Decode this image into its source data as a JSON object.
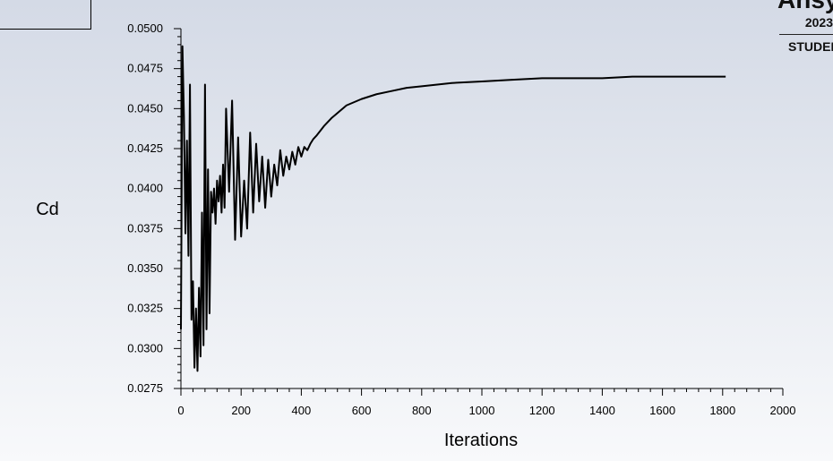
{
  "logo": {
    "word": "Ansys",
    "year": "2023",
    "edition": "STUDENT"
  },
  "chart_data": {
    "type": "line",
    "title": "",
    "xlabel": "Iterations",
    "ylabel": "Cd",
    "xlim": [
      0,
      2000
    ],
    "ylim": [
      0.0275,
      0.05
    ],
    "x_ticks": [
      0,
      200,
      400,
      600,
      800,
      1000,
      1200,
      1400,
      1600,
      1800,
      2000
    ],
    "x_tick_labels": [
      "0",
      "200",
      "400",
      "600",
      "800",
      "1000",
      "1200",
      "1400",
      "1600",
      "1800",
      "2000"
    ],
    "y_ticks": [
      0.0275,
      0.03,
      0.0325,
      0.035,
      0.0375,
      0.04,
      0.0425,
      0.045,
      0.0475,
      0.05
    ],
    "y_tick_labels": [
      "0.0275",
      "0.0300",
      "0.0325",
      "0.0350",
      "0.0375",
      "0.0400",
      "0.0425",
      "0.0450",
      "0.0475",
      "0.0500"
    ],
    "grid": false,
    "legend": "none",
    "line_color": "#000000",
    "series": [
      {
        "x": [
          0,
          5,
          10,
          15,
          20,
          25,
          30,
          35,
          40,
          45,
          50,
          55,
          60,
          65,
          70,
          75,
          80,
          85,
          90,
          95,
          100,
          105,
          110,
          115,
          120,
          125,
          130,
          135,
          140,
          145,
          150,
          160,
          170,
          180,
          190,
          200,
          210,
          220,
          230,
          240,
          250,
          260,
          270,
          280,
          290,
          300,
          310,
          320,
          330,
          340,
          350,
          360,
          370,
          380,
          390,
          400,
          410,
          420,
          430,
          440,
          450,
          475,
          500,
          525,
          550,
          600,
          650,
          700,
          750,
          800,
          900,
          1000,
          1100,
          1200,
          1300,
          1400,
          1500,
          1600,
          1700,
          1810
        ],
        "y": [
          0.0312,
          0.0489,
          0.0445,
          0.0372,
          0.043,
          0.0358,
          0.0465,
          0.0318,
          0.0342,
          0.0288,
          0.0325,
          0.0286,
          0.0338,
          0.0295,
          0.0385,
          0.0302,
          0.0465,
          0.0312,
          0.0412,
          0.0322,
          0.0398,
          0.0385,
          0.04,
          0.0378,
          0.0405,
          0.0392,
          0.0408,
          0.0385,
          0.0415,
          0.0388,
          0.045,
          0.0398,
          0.0455,
          0.0368,
          0.0432,
          0.037,
          0.0405,
          0.0375,
          0.0435,
          0.0385,
          0.0428,
          0.0392,
          0.042,
          0.0388,
          0.0418,
          0.0395,
          0.0415,
          0.0402,
          0.0424,
          0.0408,
          0.042,
          0.0412,
          0.0423,
          0.0415,
          0.0426,
          0.042,
          0.0426,
          0.0424,
          0.0428,
          0.0431,
          0.0433,
          0.0439,
          0.0444,
          0.0448,
          0.0452,
          0.0456,
          0.0459,
          0.0461,
          0.0463,
          0.0464,
          0.0466,
          0.0467,
          0.0468,
          0.0469,
          0.0469,
          0.0469,
          0.047,
          0.047,
          0.047,
          0.047
        ]
      }
    ]
  }
}
